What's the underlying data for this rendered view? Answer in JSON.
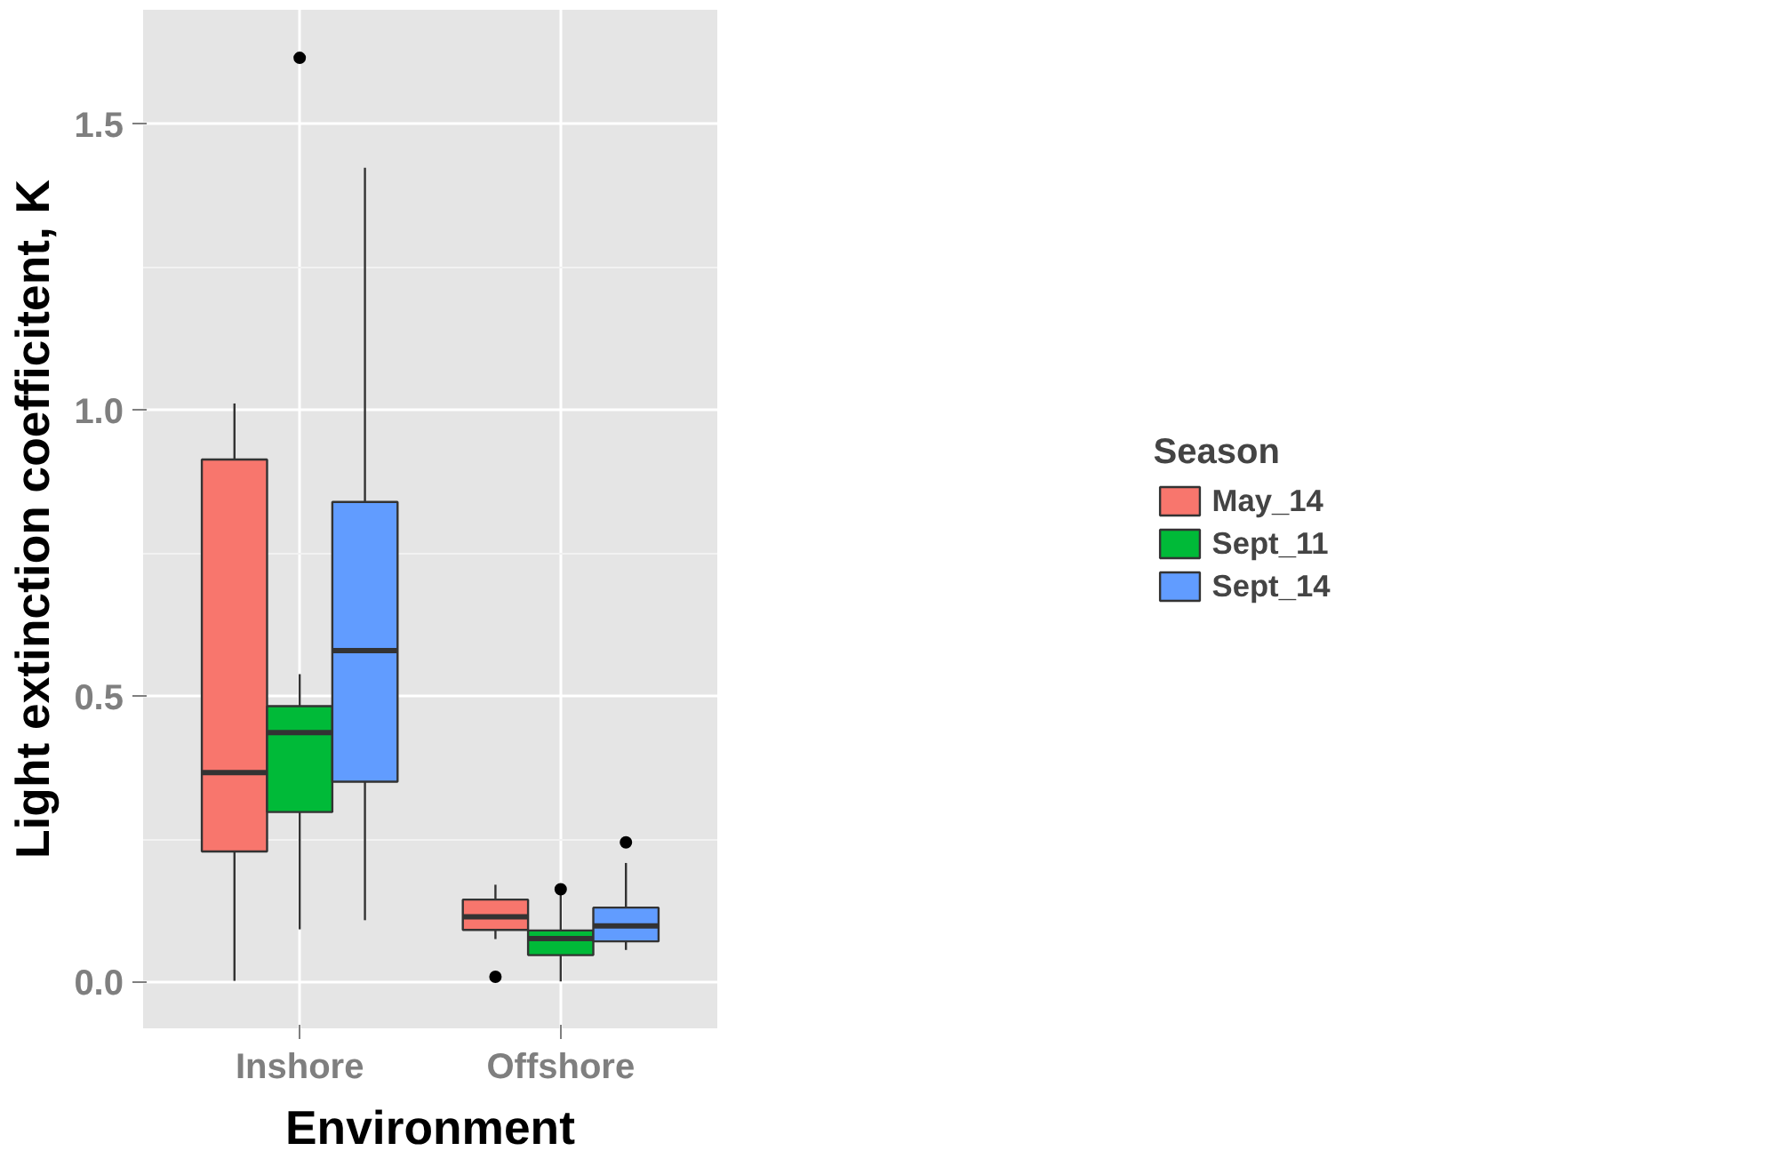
{
  "chart_data": {
    "type": "box",
    "xlabel": "Environment",
    "ylabel": "Light extinction coefficitent, K",
    "legend_title": "Season",
    "categories": [
      "Inshore",
      "Offshore"
    ],
    "ylim": [
      -0.08,
      1.7
    ],
    "yticks": [
      {
        "value": 0,
        "label": "0.0"
      },
      {
        "value": 0.5,
        "label": "0.5"
      },
      {
        "value": 1,
        "label": "1.0"
      },
      {
        "value": 1.5,
        "label": "1.5"
      }
    ],
    "grid": true,
    "legend": "right",
    "series": [
      {
        "name": "May_14",
        "color": "#f8766d",
        "boxes": [
          {
            "low": 0.003,
            "q1": 0.229,
            "median": 0.367,
            "q3": 0.914,
            "high": 1.012
          },
          {
            "low": 0.076,
            "q1": 0.092,
            "median": 0.115,
            "q3": 0.145,
            "high": 0.171,
            "outliers": [
              0.01
            ]
          }
        ]
      },
      {
        "name": "Sept_11",
        "color": "#00ba38",
        "boxes": [
          {
            "low": 0.093,
            "q1": 0.298,
            "median": 0.437,
            "q3": 0.483,
            "high": 0.539,
            "outliers": [
              1.616
            ]
          },
          {
            "low": 0.002,
            "q1": 0.048,
            "median": 0.077,
            "q3": 0.091,
            "high": 0.155,
            "outliers": [
              0.163
            ]
          }
        ]
      },
      {
        "name": "Sept_14",
        "color": "#619cff",
        "boxes": [
          {
            "low": 0.109,
            "q1": 0.351,
            "median": 0.58,
            "q3": 0.84,
            "high": 1.424
          },
          {
            "low": 0.057,
            "q1": 0.072,
            "median": 0.099,
            "q3": 0.131,
            "high": 0.209,
            "outliers": [
              0.245
            ]
          }
        ]
      }
    ]
  }
}
